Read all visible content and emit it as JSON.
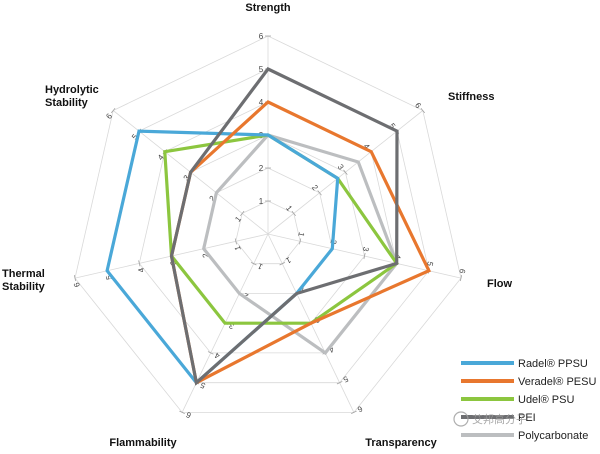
{
  "chart_data": {
    "type": "radar",
    "axes": [
      "Strength",
      "Stiffness",
      "Flow",
      "Transparency",
      "Flammability",
      "Thermal Stability",
      "Hydrolytic Stability"
    ],
    "tick_labels": [
      "1",
      "2",
      "3",
      "4",
      "5",
      "6"
    ],
    "range": [
      0,
      6
    ],
    "grid": true,
    "legend": "bottom-right",
    "series": [
      {
        "name": "Radel® PPSU",
        "color": "#4aa8d8",
        "values": [
          3,
          2.7,
          2,
          2,
          5,
          5,
          5
        ]
      },
      {
        "name": "Veradel® PESU",
        "color": "#e8772e",
        "values": [
          4,
          4,
          5,
          3,
          5,
          3,
          3
        ]
      },
      {
        "name": "Udel® PSU",
        "color": "#8cc63f",
        "values": [
          3,
          2.7,
          4,
          3,
          3,
          3,
          4
        ]
      },
      {
        "name": "PEI",
        "color": "#6d6e71",
        "values": [
          5,
          5,
          4,
          2,
          5,
          3,
          3
        ]
      },
      {
        "name": "Polycarbonate",
        "color": "#bcbec0",
        "values": [
          3,
          3.5,
          4,
          4,
          2,
          2,
          2
        ]
      }
    ]
  },
  "legend_labels": [
    "Radel® PPSU",
    "Veradel® PESU",
    "Udel® PSU",
    "PEI",
    "Polycarbonate"
  ],
  "watermark": "艾邦高分子"
}
